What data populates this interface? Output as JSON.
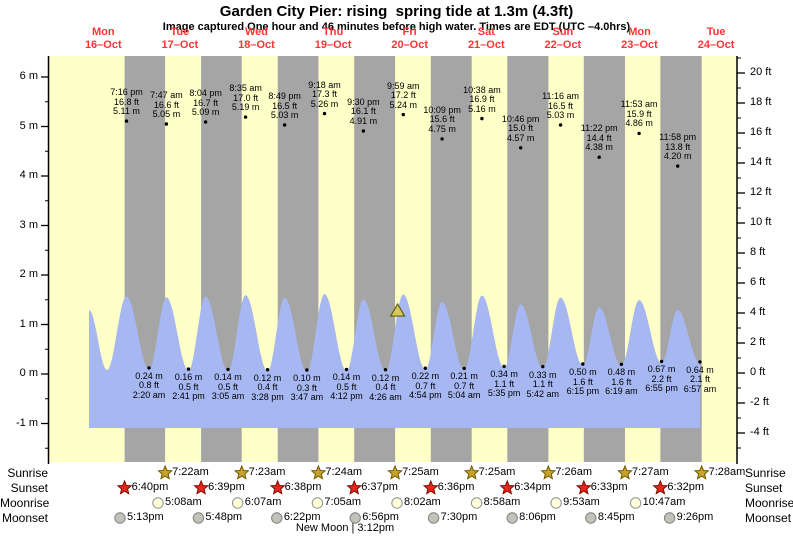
{
  "title": "Garden City Pier: rising  spring tide at 1.3m (4.3ft)",
  "subtitle": "Image captured One hour and 46 minutes before high water. Times are EDT (UTC –4.0hrs)",
  "colors": {
    "day_band": "#ffffc8",
    "night_band": "#a5a5a5",
    "tide_fill": "#a6b7f1",
    "red_text": "#ff3333",
    "axis": "#000000",
    "sunrise_star_fill": "#c9a22b",
    "sunrise_star_stroke": "#6e5a00",
    "sunset_star_fill": "#e6261b",
    "sunset_star_stroke": "#7e0d00",
    "moonrise_fill": "#ffffd9",
    "moonrise_stroke": "#909090",
    "moonset_fill": "#c2c2b8",
    "moonset_stroke": "#808080",
    "marker_fill": "#d6c95a",
    "marker_stroke": "#5f5f15"
  },
  "days": [
    {
      "name": "Mon",
      "date": "16–Oct"
    },
    {
      "name": "Tue",
      "date": "17–Oct"
    },
    {
      "name": "Wed",
      "date": "18–Oct"
    },
    {
      "name": "Thu",
      "date": "19–Oct"
    },
    {
      "name": "Fri",
      "date": "20–Oct"
    },
    {
      "name": "Sat",
      "date": "21–Oct"
    },
    {
      "name": "Sun",
      "date": "22–Oct"
    },
    {
      "name": "Mon",
      "date": "23–Oct"
    },
    {
      "name": "Tue",
      "date": "24–Oct"
    }
  ],
  "axes": {
    "left_meters": [
      {
        "value": 6,
        "label": "6 m"
      },
      {
        "value": 5,
        "label": "5 m"
      },
      {
        "value": 4,
        "label": "4 m"
      },
      {
        "value": 3,
        "label": "3 m"
      },
      {
        "value": 2,
        "label": "2 m"
      },
      {
        "value": 1,
        "label": "1 m"
      },
      {
        "value": 0,
        "label": "0 m"
      },
      {
        "value": -1,
        "label": "-1 m"
      }
    ],
    "right_feet": [
      {
        "value": 20,
        "label": "20 ft"
      },
      {
        "value": 18,
        "label": "18 ft"
      },
      {
        "value": 16,
        "label": "16 ft"
      },
      {
        "value": 14,
        "label": "14 ft"
      },
      {
        "value": 12,
        "label": "12 ft"
      },
      {
        "value": 10,
        "label": "10 ft"
      },
      {
        "value": 8,
        "label": "8 ft"
      },
      {
        "value": 6,
        "label": "6 ft"
      },
      {
        "value": 4,
        "label": "4 ft"
      },
      {
        "value": 2,
        "label": "2 ft"
      },
      {
        "value": 0,
        "label": "0 ft"
      },
      {
        "value": -2,
        "label": "-2 ft"
      },
      {
        "value": -4,
        "label": "-4 ft"
      }
    ]
  },
  "chart_data": {
    "type": "area",
    "title": "Garden City Pier tide height",
    "x_unit": "days since Mon 16-Oct 00:00 EDT",
    "ylabel_left": "meters",
    "ylabel_right": "feet",
    "tide_events": [
      {
        "type": "high",
        "t": 0.8028,
        "height_m": 5.11,
        "label_lines": [
          "7:16 pm",
          "16.8 ft",
          "5.11 m"
        ]
      },
      {
        "type": "low",
        "t": 1.0972,
        "height_m": 0.24,
        "label_lines": [
          "0.24 m",
          "0.8 ft",
          "2:20 am"
        ]
      },
      {
        "type": "high",
        "t": 1.3243,
        "height_m": 5.05,
        "label_lines": [
          "7:47 am",
          "16.6 ft",
          "5.05 m"
        ]
      },
      {
        "type": "low",
        "t": 1.6118,
        "height_m": 0.16,
        "label_lines": [
          "0.16 m",
          "0.5 ft",
          "2:41 pm"
        ]
      },
      {
        "type": "high",
        "t": 1.8361,
        "height_m": 5.09,
        "label_lines": [
          "8:04 pm",
          "16.7 ft",
          "5.09 m"
        ]
      },
      {
        "type": "low",
        "t": 2.1285,
        "height_m": 0.14,
        "label_lines": [
          "0.14 m",
          "0.5 ft",
          "3:05 am"
        ]
      },
      {
        "type": "high",
        "t": 2.3576,
        "height_m": 5.19,
        "label_lines": [
          "8:35 am",
          "17.0 ft",
          "5.19 m"
        ]
      },
      {
        "type": "low",
        "t": 2.6444,
        "height_m": 0.12,
        "label_lines": [
          "0.12 m",
          "0.4 ft",
          "3:28 pm"
        ]
      },
      {
        "type": "high",
        "t": 2.8674,
        "height_m": 5.03,
        "label_lines": [
          "8:49 pm",
          "16.5 ft",
          "5.03 m"
        ]
      },
      {
        "type": "low",
        "t": 3.1576,
        "height_m": 0.1,
        "label_lines": [
          "0.10 m",
          "0.3 ft",
          "3:47 am"
        ]
      },
      {
        "type": "high",
        "t": 3.3875,
        "height_m": 5.26,
        "label_lines": [
          "9:18 am",
          "17.3 ft",
          "5.26 m"
        ]
      },
      {
        "type": "low",
        "t": 3.675,
        "height_m": 0.14,
        "label_lines": [
          "0.14 m",
          "0.5 ft",
          "4:12 pm"
        ]
      },
      {
        "type": "high",
        "t": 3.8958,
        "height_m": 4.91,
        "label_lines": [
          "9:30 pm",
          "16.1 ft",
          "4.91 m"
        ]
      },
      {
        "type": "low",
        "t": 4.1847,
        "height_m": 0.12,
        "label_lines": [
          "0.12 m",
          "0.4 ft",
          "4:26 am"
        ]
      },
      {
        "type": "high",
        "t": 4.416,
        "height_m": 5.24,
        "label_lines": [
          "9:59 am",
          "17.2 ft",
          "5.24 m"
        ]
      },
      {
        "type": "low",
        "t": 4.7042,
        "height_m": 0.22,
        "label_lines": [
          "0.22 m",
          "0.7 ft",
          "4:54 pm"
        ]
      },
      {
        "type": "high",
        "t": 4.9229,
        "height_m": 4.75,
        "label_lines": [
          "10:09 pm",
          "15.6 ft",
          "4.75 m"
        ]
      },
      {
        "type": "low",
        "t": 5.2111,
        "height_m": 0.21,
        "label_lines": [
          "0.21 m",
          "0.7 ft",
          "5:04 am"
        ]
      },
      {
        "type": "high",
        "t": 5.4431,
        "height_m": 5.16,
        "label_lines": [
          "10:38 am",
          "16.9 ft",
          "5.16 m"
        ]
      },
      {
        "type": "low",
        "t": 5.7326,
        "height_m": 0.34,
        "label_lines": [
          "0.34 m",
          "1.1 ft",
          "5:35 pm"
        ]
      },
      {
        "type": "high",
        "t": 5.9486,
        "height_m": 4.57,
        "label_lines": [
          "10:46 pm",
          "15.0 ft",
          "4.57 m"
        ]
      },
      {
        "type": "low",
        "t": 6.2375,
        "height_m": 0.33,
        "label_lines": [
          "0.33 m",
          "1.1 ft",
          "5:42 am"
        ]
      },
      {
        "type": "high",
        "t": 6.4694,
        "height_m": 5.03,
        "label_lines": [
          "11:16 am",
          "16.5 ft",
          "5.03 m"
        ]
      },
      {
        "type": "low",
        "t": 6.7604,
        "height_m": 0.5,
        "label_lines": [
          "0.50 m",
          "1.6 ft",
          "6:15 pm"
        ]
      },
      {
        "type": "high",
        "t": 6.9736,
        "height_m": 4.38,
        "label_lines": [
          "11:22 pm",
          "14.4 ft",
          "4.38 m"
        ]
      },
      {
        "type": "low",
        "t": 7.2632,
        "height_m": 0.48,
        "label_lines": [
          "0.48 m",
          "1.6 ft",
          "6:19 am"
        ]
      },
      {
        "type": "high",
        "t": 7.4951,
        "height_m": 4.86,
        "label_lines": [
          "11:53 am",
          "15.9 ft",
          "4.86 m"
        ]
      },
      {
        "type": "low",
        "t": 7.7882,
        "height_m": 0.67,
        "label_lines": [
          "0.67 m",
          "2.2 ft",
          "6:55 pm"
        ]
      },
      {
        "type": "high",
        "t": 7.9986,
        "height_m": 4.2,
        "label_lines": [
          "11:58 pm",
          "13.8 ft",
          "4.20 m"
        ]
      },
      {
        "type": "low",
        "t": 8.2896,
        "height_m": 0.64,
        "label_lines": [
          "0.64 m",
          "2.1 ft",
          "6:57 am"
        ]
      }
    ],
    "curve_edge_events": [
      {
        "t": 0.313,
        "height_m": 4.2
      },
      {
        "t": 0.548,
        "height_m": 0.2
      }
    ],
    "current_marker": {
      "t": 4.3424,
      "note": "rising tide at 1.3m (4.3ft)"
    }
  },
  "astro": {
    "row_labels": [
      "Sunrise",
      "Sunset",
      "Moonrise",
      "Moonset"
    ],
    "sunrise": [
      {
        "time": "7:22am",
        "t": 1.3069
      },
      {
        "time": "7:23am",
        "t": 2.3076
      },
      {
        "time": "7:24am",
        "t": 3.3083
      },
      {
        "time": "7:25am",
        "t": 4.309
      },
      {
        "time": "7:25am",
        "t": 5.309
      },
      {
        "time": "7:26am",
        "t": 6.3097
      },
      {
        "time": "7:27am",
        "t": 7.3104
      },
      {
        "time": "7:28am",
        "t": 8.3111
      }
    ],
    "sunset": [
      {
        "time": "6:40pm",
        "t": 0.7778
      },
      {
        "time": "6:39pm",
        "t": 1.7771
      },
      {
        "time": "6:38pm",
        "t": 2.7764
      },
      {
        "time": "6:37pm",
        "t": 3.7757
      },
      {
        "time": "6:36pm",
        "t": 4.775
      },
      {
        "time": "6:34pm",
        "t": 5.7736
      },
      {
        "time": "6:33pm",
        "t": 6.7729
      },
      {
        "time": "6:32pm",
        "t": 7.7722
      }
    ],
    "moonrise": [
      {
        "time": "5:08am",
        "t": 1.2139
      },
      {
        "time": "6:07am",
        "t": 2.2549
      },
      {
        "time": "7:05am",
        "t": 3.2951
      },
      {
        "time": "8:02am",
        "t": 4.3347
      },
      {
        "time": "8:58am",
        "t": 5.3736
      },
      {
        "time": "9:53am",
        "t": 6.4118
      },
      {
        "time": "10:47am",
        "t": 7.4493
      }
    ],
    "moonset": [
      {
        "time": "5:13pm",
        "t": 0.7174
      },
      {
        "time": "5:48pm",
        "t": 1.7417
      },
      {
        "time": "6:22pm",
        "t": 2.7653
      },
      {
        "time": "6:56pm",
        "t": 3.7889
      },
      {
        "time": "7:30pm",
        "t": 4.8125
      },
      {
        "time": "8:06pm",
        "t": 5.8375
      },
      {
        "time": "8:45pm",
        "t": 6.8646
      },
      {
        "time": "9:26pm",
        "t": 7.8931
      }
    ],
    "moon_phase": {
      "text": "New Moon | 3:12pm",
      "name": "New Moon",
      "time": "3:12pm"
    },
    "night_bands": [
      [
        0.7778,
        1.3069
      ],
      [
        1.7771,
        2.3076
      ],
      [
        2.7764,
        3.3083
      ],
      [
        3.7757,
        4.309
      ],
      [
        4.775,
        5.309
      ],
      [
        5.7736,
        6.3097
      ],
      [
        6.7729,
        7.3104
      ],
      [
        7.7722,
        8.3111
      ]
    ]
  }
}
